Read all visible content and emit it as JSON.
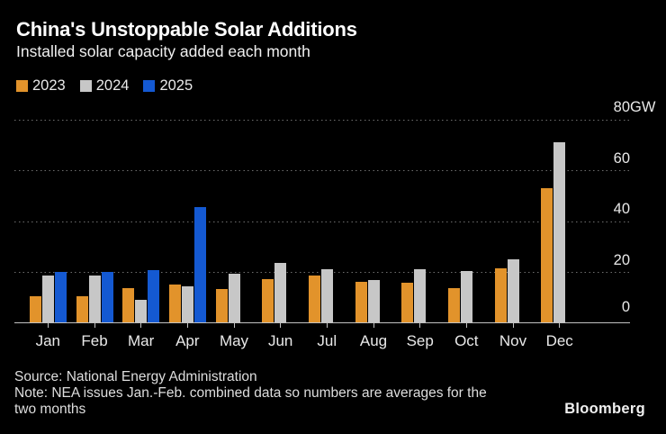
{
  "header": {
    "title": "China's Unstoppable Solar Additions",
    "subtitle": "Installed solar capacity added each month"
  },
  "chart_data": {
    "type": "bar",
    "title": "China's Unstoppable Solar Additions",
    "subtitle": "Installed solar capacity added each month",
    "categories": [
      "Jan",
      "Feb",
      "Mar",
      "Apr",
      "May",
      "Jun",
      "Jul",
      "Aug",
      "Sep",
      "Oct",
      "Nov",
      "Dec"
    ],
    "series": [
      {
        "name": "2023",
        "color": "#E2932B",
        "values": [
          10.2,
          10.2,
          13.2,
          14.6,
          12.8,
          16.7,
          18.3,
          15.6,
          15.3,
          13.2,
          21.1,
          52.7
        ]
      },
      {
        "name": "2024",
        "color": "#C7C7C7",
        "values": [
          18.2,
          18.2,
          8.6,
          13.9,
          18.8,
          23.2,
          20.9,
          16.4,
          20.6,
          20.0,
          24.6,
          70.7
        ]
      },
      {
        "name": "2025",
        "color": "#1459D2",
        "values": [
          19.8,
          19.8,
          20.2,
          45.2,
          null,
          null,
          null,
          null,
          null,
          null,
          null,
          null
        ]
      }
    ],
    "unit": "GW",
    "ylim": [
      0,
      80
    ],
    "yticks": [
      {
        "v": 0,
        "label": "0"
      },
      {
        "v": 20,
        "label": "20"
      },
      {
        "v": 40,
        "label": "40"
      },
      {
        "v": 60,
        "label": "60"
      },
      {
        "v": 80,
        "label": "80",
        "unit": "GW"
      }
    ],
    "grid": "horizontal-dotted",
    "legend_position": "top-left",
    "ylabel_side": "right"
  },
  "footer": {
    "source": "Source: National Energy Administration",
    "note_lines": [
      "Note: NEA issues Jan.-Feb. combined data so numbers are averages for the",
      "two months"
    ],
    "brand": "Bloomberg"
  },
  "colors": {
    "background": "#000000",
    "title_text": "#FFFFFF",
    "axis_text": "#E9E9E9",
    "footer_text": "#DEDEDE",
    "gridline": "#6E6E6E",
    "axis_line": "#C2C2C2",
    "series_2023": "#E2932B",
    "series_2024": "#C7C7C7",
    "series_2025": "#1459D2"
  }
}
